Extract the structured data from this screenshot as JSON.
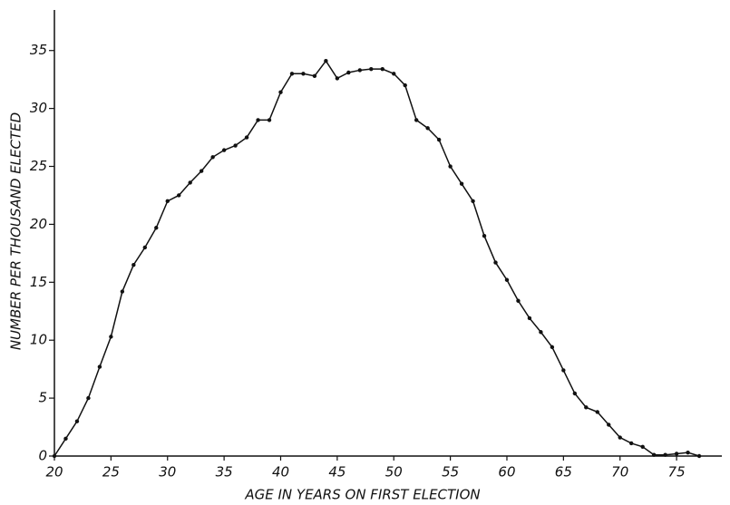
{
  "chart_data": {
    "type": "line",
    "xlabel": "AGE IN YEARS ON FIRST ELECTION",
    "ylabel": "NUMBER PER THOUSAND ELECTED",
    "x": [
      20,
      21,
      22,
      23,
      24,
      25,
      26,
      27,
      28,
      29,
      30,
      31,
      32,
      33,
      34,
      35,
      36,
      37,
      38,
      39,
      40,
      41,
      42,
      43,
      44,
      45,
      46,
      47,
      48,
      49,
      50,
      51,
      52,
      53,
      54,
      55,
      56,
      57,
      58,
      59,
      60,
      61,
      62,
      63,
      64,
      65,
      66,
      67,
      68,
      69,
      70,
      71,
      72,
      73,
      74,
      75,
      76,
      77
    ],
    "series": [
      {
        "color": "#111111",
        "values": [
          0,
          1.5,
          3,
          5,
          7.7,
          10.3,
          14.2,
          16.5,
          18,
          19.7,
          22,
          22.5,
          23.6,
          24.6,
          25.8,
          26.4,
          26.8,
          27.5,
          29,
          29,
          31.4,
          33,
          33,
          32.8,
          34.1,
          32.6,
          33.1,
          33.3,
          33.4,
          33.4,
          33,
          32,
          29,
          28.3,
          27.3,
          25,
          23.5,
          22,
          19,
          16.7,
          15.2,
          13.4,
          11.9,
          10.7,
          9.4,
          7.4,
          5.4,
          4.2,
          3.8,
          2.7,
          1.6,
          1.1,
          0.8,
          0.1,
          0.1,
          0.2,
          0.3,
          0
        ]
      }
    ],
    "xlim": [
      20,
      79
    ],
    "ylim": [
      0,
      38.5
    ],
    "xticks": [
      20,
      25,
      30,
      35,
      40,
      45,
      50,
      55,
      60,
      65,
      70,
      75
    ],
    "yticks": [
      0,
      5,
      10,
      15,
      20,
      25,
      30,
      35
    ]
  }
}
